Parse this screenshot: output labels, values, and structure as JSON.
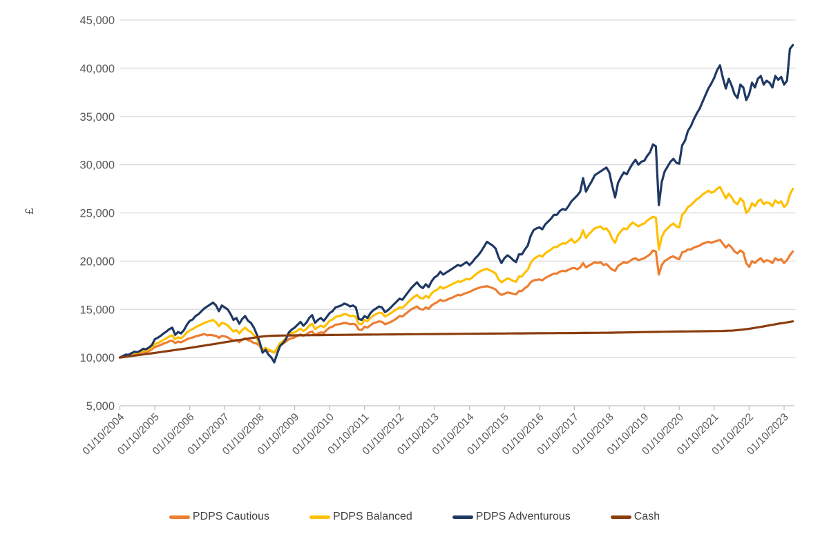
{
  "page": {
    "background": "#FFFFFF"
  },
  "chart_data": {
    "type": "line",
    "title": "",
    "xlabel": "",
    "ylabel": "£",
    "ylim": [
      5000,
      45000
    ],
    "y_tick_step": 5000,
    "y_tick_labels": [
      "5,000",
      "10,000",
      "15,000",
      "20,000",
      "25,000",
      "30,000",
      "35,000",
      "40,000",
      "45,000"
    ],
    "x_tick_labels": [
      "01/10/2004",
      "01/10/2005",
      "01/10/2006",
      "01/10/2007",
      "01/10/2008",
      "01/10/2009",
      "01/10/2010",
      "01/10/2011",
      "01/10/2012",
      "01/10/2013",
      "01/10/2014",
      "01/10/2015",
      "01/10/2016",
      "01/10/2017",
      "01/10/2018",
      "01/10/2019",
      "01/10/2020",
      "01/10/2021",
      "01/10/2022",
      "01/10/2023"
    ],
    "points_per_tick": 12,
    "n_points": 232,
    "grid": true,
    "legend_position": "bottom",
    "colors": {
      "gridline": "#D9D9D9",
      "axis": "#BFBFBF",
      "tick_label": "#595959",
      "legend_text": "#404040"
    },
    "series": [
      {
        "name": "PDPS Cautious",
        "color": "#ED7D31",
        "values": [
          10000,
          10100,
          10200,
          10180,
          10300,
          10400,
          10380,
          10480,
          10600,
          10560,
          10680,
          10850,
          11100,
          11180,
          11300,
          11450,
          11550,
          11700,
          11750,
          11500,
          11650,
          11580,
          11720,
          11900,
          12000,
          12080,
          12200,
          12280,
          12350,
          12450,
          12300,
          12350,
          12300,
          12250,
          12050,
          12250,
          12200,
          12100,
          11900,
          11750,
          11850,
          11600,
          11850,
          12000,
          11800,
          11700,
          11500,
          11450,
          11200,
          10700,
          10800,
          10700,
          10650,
          10500,
          10900,
          11300,
          11450,
          11650,
          11900,
          12000,
          12100,
          12250,
          12400,
          12250,
          12400,
          12600,
          12700,
          12350,
          12500,
          12600,
          12550,
          12850,
          13100,
          13200,
          13400,
          13450,
          13500,
          13600,
          13550,
          13450,
          13500,
          13400,
          12900,
          12850,
          13200,
          13100,
          13350,
          13550,
          13650,
          13750,
          13700,
          13450,
          13550,
          13700,
          13850,
          14050,
          14300,
          14250,
          14500,
          14750,
          15000,
          15150,
          15300,
          15050,
          14950,
          15200,
          15050,
          15400,
          15600,
          15750,
          16000,
          15850,
          15950,
          16100,
          16200,
          16350,
          16500,
          16450,
          16600,
          16700,
          16800,
          16950,
          17100,
          17200,
          17300,
          17350,
          17400,
          17300,
          17200,
          17050,
          16700,
          16500,
          16600,
          16750,
          16700,
          16600,
          16550,
          16900,
          16900,
          17200,
          17400,
          17800,
          18000,
          18050,
          18100,
          18000,
          18250,
          18400,
          18550,
          18700,
          18700,
          18900,
          19000,
          18950,
          19100,
          19250,
          19300,
          19150,
          19350,
          19800,
          19350,
          19550,
          19700,
          19900,
          19800,
          19900,
          19600,
          19700,
          19400,
          19100,
          19000,
          19500,
          19700,
          19900,
          19800,
          20000,
          20200,
          20300,
          20100,
          20200,
          20300,
          20500,
          20700,
          21100,
          21000,
          18600,
          19600,
          20000,
          20200,
          20400,
          20500,
          20300,
          20200,
          20900,
          21000,
          21200,
          21200,
          21400,
          21500,
          21600,
          21800,
          21900,
          22000,
          21900,
          22000,
          22100,
          22200,
          21800,
          21400,
          21700,
          21400,
          21000,
          20800,
          21100,
          20900,
          19800,
          19400,
          20000,
          19800,
          20100,
          20300,
          19900,
          20100,
          20000,
          19800,
          20300,
          20100,
          20200,
          19800,
          20100,
          20600,
          21000
        ]
      },
      {
        "name": "PDPS Balanced",
        "color": "#FFC000",
        "values": [
          10000,
          10120,
          10250,
          10230,
          10380,
          10500,
          10460,
          10580,
          10750,
          10700,
          10850,
          11050,
          11400,
          11500,
          11650,
          11850,
          12000,
          12200,
          12300,
          11900,
          12100,
          12000,
          12250,
          12600,
          12800,
          12950,
          13150,
          13300,
          13450,
          13600,
          13700,
          13800,
          13900,
          13650,
          13250,
          13600,
          13500,
          13350,
          13000,
          12700,
          12850,
          12500,
          12850,
          13100,
          12800,
          12650,
          12300,
          12000,
          11400,
          10800,
          11000,
          10800,
          10700,
          10500,
          11000,
          11500,
          11700,
          12000,
          12400,
          12550,
          12600,
          12800,
          13000,
          12750,
          12950,
          13300,
          13500,
          12950,
          13150,
          13300,
          13150,
          13450,
          13800,
          13950,
          14200,
          14300,
          14350,
          14500,
          14450,
          14300,
          14350,
          14200,
          13500,
          13450,
          13900,
          13750,
          14100,
          14350,
          14500,
          14650,
          14600,
          14250,
          14400,
          14600,
          14800,
          15000,
          15200,
          15150,
          15450,
          15750,
          16050,
          16300,
          16500,
          16200,
          16100,
          16400,
          16200,
          16650,
          16900,
          17050,
          17350,
          17150,
          17300,
          17450,
          17600,
          17750,
          17900,
          17850,
          18000,
          18150,
          18100,
          18300,
          18600,
          18800,
          19000,
          19100,
          19200,
          19050,
          18900,
          18700,
          18100,
          17800,
          18000,
          18200,
          18100,
          17950,
          17850,
          18400,
          18400,
          18800,
          19100,
          19800,
          20200,
          20400,
          20600,
          20450,
          20800,
          21000,
          21200,
          21450,
          21450,
          21700,
          21850,
          21800,
          22050,
          22300,
          21900,
          22100,
          22400,
          23200,
          22400,
          22800,
          23100,
          23400,
          23500,
          23600,
          23300,
          23400,
          23000,
          22300,
          21900,
          22700,
          23100,
          23400,
          23300,
          23700,
          24000,
          23800,
          23600,
          23800,
          23900,
          24200,
          24400,
          24600,
          24500,
          21200,
          22500,
          23100,
          23400,
          23700,
          23900,
          23600,
          23500,
          24800,
          25100,
          25600,
          25800,
          26100,
          26400,
          26600,
          26900,
          27100,
          27300,
          27100,
          27200,
          27500,
          27700,
          27100,
          26500,
          27000,
          26600,
          26100,
          25900,
          26500,
          26200,
          25000,
          25300,
          26000,
          25700,
          26200,
          26400,
          25900,
          26100,
          26000,
          25700,
          26300,
          26000,
          26200,
          25600,
          25900,
          26900,
          27500
        ]
      },
      {
        "name": "PDPS Adventurous",
        "color": "#1F3864",
        "values": [
          10000,
          10150,
          10300,
          10280,
          10450,
          10600,
          10550,
          10700,
          10900,
          10850,
          11050,
          11300,
          11900,
          12050,
          12250,
          12500,
          12700,
          12950,
          13100,
          12350,
          12650,
          12500,
          12850,
          13400,
          13800,
          13950,
          14300,
          14500,
          14800,
          15100,
          15300,
          15500,
          15700,
          15400,
          14800,
          15400,
          15200,
          15000,
          14500,
          13900,
          14100,
          13500,
          14000,
          14300,
          13800,
          13600,
          13100,
          12400,
          11600,
          10500,
          10800,
          10300,
          10000,
          9500,
          10400,
          11200,
          11500,
          11900,
          12600,
          12900,
          13100,
          13400,
          13700,
          13300,
          13600,
          14100,
          14400,
          13600,
          13900,
          14100,
          13800,
          14200,
          14600,
          14800,
          15200,
          15300,
          15400,
          15600,
          15500,
          15300,
          15400,
          15200,
          14000,
          13900,
          14300,
          14100,
          14600,
          14900,
          15100,
          15300,
          15200,
          14700,
          14900,
          15200,
          15500,
          15800,
          16100,
          16000,
          16400,
          16800,
          17200,
          17500,
          17800,
          17400,
          17200,
          17600,
          17300,
          17900,
          18300,
          18500,
          18900,
          18600,
          18800,
          19000,
          19200,
          19400,
          19600,
          19500,
          19700,
          19900,
          19600,
          19900,
          20300,
          20600,
          21000,
          21500,
          22000,
          21800,
          21600,
          21300,
          20400,
          19800,
          20300,
          20600,
          20400,
          20100,
          19900,
          20700,
          20700,
          21200,
          21600,
          22600,
          23200,
          23400,
          23500,
          23300,
          23800,
          24100,
          24400,
          24800,
          24800,
          25200,
          25400,
          25300,
          25700,
          26200,
          26500,
          26800,
          27200,
          28600,
          27200,
          27800,
          28300,
          28900,
          29100,
          29300,
          29500,
          29700,
          29200,
          27800,
          26600,
          28100,
          28700,
          29200,
          29000,
          29600,
          30100,
          30500,
          30000,
          30300,
          30400,
          30900,
          31300,
          32100,
          31900,
          25800,
          28200,
          29300,
          29800,
          30300,
          30600,
          30200,
          30100,
          32000,
          32500,
          33500,
          34000,
          34700,
          35300,
          35800,
          36500,
          37200,
          37900,
          38400,
          39000,
          39800,
          40300,
          39000,
          37900,
          38900,
          38200,
          37300,
          36900,
          38300,
          38000,
          36700,
          37300,
          38500,
          38000,
          38900,
          39200,
          38300,
          38700,
          38500,
          38000,
          39200,
          38800,
          39100,
          38300,
          38700,
          42000,
          42400
        ]
      },
      {
        "name": "Cash",
        "color": "#8B3D0E",
        "values": [
          10000,
          10040,
          10080,
          10120,
          10160,
          10200,
          10240,
          10280,
          10320,
          10360,
          10400,
          10440,
          10480,
          10525,
          10570,
          10610,
          10655,
          10695,
          10740,
          10785,
          10825,
          10870,
          10910,
          10955,
          11000,
          11050,
          11095,
          11145,
          11190,
          11240,
          11290,
          11335,
          11385,
          11430,
          11480,
          11530,
          11580,
          11630,
          11675,
          11725,
          11770,
          11820,
          11865,
          11915,
          11960,
          12010,
          12055,
          12105,
          12150,
          12185,
          12215,
          12240,
          12255,
          12265,
          12272,
          12278,
          12283,
          12288,
          12292,
          12296,
          12300,
          12303,
          12306,
          12310,
          12313,
          12316,
          12320,
          12323,
          12326,
          12330,
          12333,
          12336,
          12340,
          12343,
          12346,
          12349,
          12352,
          12355,
          12358,
          12361,
          12364,
          12367,
          12369,
          12372,
          12375,
          12378,
          12380,
          12383,
          12385,
          12388,
          12390,
          12393,
          12395,
          12398,
          12400,
          12403,
          12405,
          12408,
          12410,
          12413,
          12415,
          12418,
          12420,
          12423,
          12425,
          12428,
          12430,
          12433,
          12435,
          12438,
          12440,
          12443,
          12445,
          12448,
          12450,
          12453,
          12455,
          12458,
          12460,
          12463,
          12465,
          12468,
          12470,
          12473,
          12475,
          12478,
          12480,
          12483,
          12485,
          12488,
          12490,
          12493,
          12495,
          12497,
          12499,
          12501,
          12503,
          12505,
          12507,
          12509,
          12511,
          12513,
          12515,
          12518,
          12520,
          12522,
          12524,
          12526,
          12528,
          12530,
          12532,
          12534,
          12536,
          12538,
          12541,
          12543,
          12545,
          12548,
          12550,
          12553,
          12555,
          12558,
          12560,
          12563,
          12565,
          12568,
          12570,
          12573,
          12575,
          12580,
          12586,
          12591,
          12597,
          12602,
          12608,
          12613,
          12618,
          12624,
          12629,
          12635,
          12640,
          12645,
          12650,
          12655,
          12660,
          12665,
          12670,
          12675,
          12680,
          12685,
          12690,
          12695,
          12700,
          12703,
          12706,
          12710,
          12713,
          12716,
          12720,
          12723,
          12726,
          12730,
          12733,
          12736,
          12740,
          12745,
          12752,
          12760,
          12770,
          12782,
          12796,
          12815,
          12840,
          12870,
          12905,
          12940,
          12980,
          13030,
          13080,
          13130,
          13180,
          13230,
          13285,
          13340,
          13395,
          13450,
          13505,
          13550,
          13595,
          13645,
          13700,
          13750
        ]
      }
    ]
  }
}
